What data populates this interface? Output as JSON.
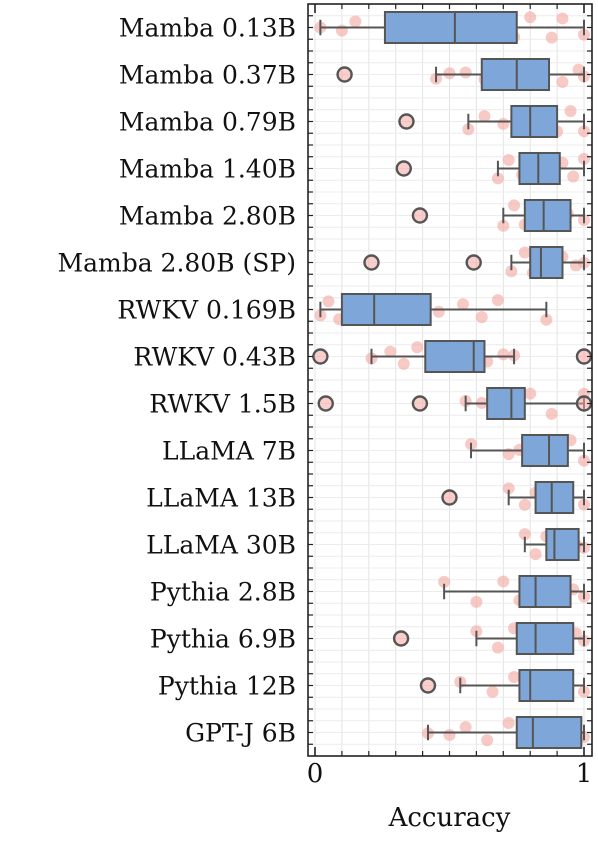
{
  "chart_data": {
    "type": "box",
    "xlabel": "Accuracy",
    "xlim": [
      0,
      1
    ],
    "x_ticks": [
      "0",
      "1"
    ],
    "grid": true,
    "colors": {
      "box": "#7ea6d8",
      "box_edge": "#555555",
      "point": "#f4a6a0",
      "outlier_edge": "#555555"
    },
    "series": [
      {
        "label": "Mamba 0.13B",
        "whisker_low": 0.02,
        "q1": 0.26,
        "median": 0.52,
        "q3": 0.75,
        "whisker_high": 1.0,
        "outliers": [],
        "points": [
          0.02,
          0.1,
          0.15,
          0.28,
          0.33,
          0.36,
          0.42,
          0.45,
          0.48,
          0.52,
          0.55,
          0.6,
          0.66,
          0.7,
          0.74,
          0.8,
          0.88,
          0.92,
          1.0
        ]
      },
      {
        "label": "Mamba 0.37B",
        "whisker_low": 0.45,
        "q1": 0.62,
        "median": 0.75,
        "q3": 0.87,
        "whisker_high": 1.0,
        "outliers": [
          0.11
        ],
        "points": [
          0.45,
          0.5,
          0.56,
          0.63,
          0.68,
          0.72,
          0.76,
          0.8,
          0.85,
          0.92,
          0.98,
          1.0
        ]
      },
      {
        "label": "Mamba 0.79B",
        "whisker_low": 0.57,
        "q1": 0.73,
        "median": 0.8,
        "q3": 0.9,
        "whisker_high": 1.0,
        "outliers": [
          0.34
        ],
        "points": [
          0.57,
          0.63,
          0.7,
          0.75,
          0.78,
          0.82,
          0.86,
          0.9,
          0.95,
          1.0
        ]
      },
      {
        "label": "Mamba 1.40B",
        "whisker_low": 0.68,
        "q1": 0.76,
        "median": 0.83,
        "q3": 0.91,
        "whisker_high": 1.0,
        "outliers": [
          0.33
        ],
        "points": [
          0.68,
          0.72,
          0.77,
          0.8,
          0.84,
          0.88,
          0.92,
          0.96,
          1.0
        ]
      },
      {
        "label": "Mamba 2.80B",
        "whisker_low": 0.7,
        "q1": 0.78,
        "median": 0.85,
        "q3": 0.95,
        "whisker_high": 1.0,
        "outliers": [
          0.39
        ],
        "points": [
          0.7,
          0.74,
          0.78,
          0.82,
          0.86,
          0.9,
          0.94,
          1.0
        ]
      },
      {
        "label": "Mamba 2.80B (SP)",
        "whisker_low": 0.73,
        "q1": 0.8,
        "median": 0.84,
        "q3": 0.92,
        "whisker_high": 1.0,
        "outliers": [
          0.21,
          0.59
        ],
        "points": [
          0.73,
          0.78,
          0.81,
          0.84,
          0.88,
          0.92,
          0.97,
          1.0
        ]
      },
      {
        "label": "RWKV 0.169B",
        "whisker_low": 0.02,
        "q1": 0.1,
        "median": 0.22,
        "q3": 0.43,
        "whisker_high": 0.86,
        "outliers": [],
        "points": [
          0.02,
          0.05,
          0.09,
          0.14,
          0.19,
          0.22,
          0.27,
          0.33,
          0.4,
          0.46,
          0.55,
          0.62,
          0.68,
          0.86
        ]
      },
      {
        "label": "RWKV 0.43B",
        "whisker_low": 0.21,
        "q1": 0.41,
        "median": 0.59,
        "q3": 0.63,
        "whisker_high": 0.74,
        "outliers": [
          0.02,
          1.0
        ],
        "points": [
          0.21,
          0.28,
          0.33,
          0.38,
          0.45,
          0.52,
          0.57,
          0.6,
          0.64,
          0.7,
          0.74
        ]
      },
      {
        "label": "RWKV 1.5B",
        "whisker_low": 0.56,
        "q1": 0.64,
        "median": 0.73,
        "q3": 0.78,
        "whisker_high": 1.0,
        "outliers": [
          0.04,
          0.39,
          1.0
        ],
        "points": [
          0.56,
          0.62,
          0.66,
          0.72,
          0.76,
          0.8,
          0.88,
          1.0
        ]
      },
      {
        "label": "LLaMA 7B",
        "whisker_low": 0.58,
        "q1": 0.77,
        "median": 0.87,
        "q3": 0.94,
        "whisker_high": 1.0,
        "outliers": [],
        "points": [
          0.58,
          0.72,
          0.76,
          0.8,
          0.84,
          0.88,
          0.91,
          0.95,
          1.0
        ]
      },
      {
        "label": "LLaMA 13B",
        "whisker_low": 0.72,
        "q1": 0.82,
        "median": 0.88,
        "q3": 0.96,
        "whisker_high": 1.0,
        "outliers": [
          0.5
        ],
        "points": [
          0.72,
          0.78,
          0.82,
          0.86,
          0.9,
          0.94,
          1.0
        ]
      },
      {
        "label": "LLaMA 30B",
        "whisker_low": 0.78,
        "q1": 0.86,
        "median": 0.89,
        "q3": 0.98,
        "whisker_high": 1.0,
        "outliers": [],
        "points": [
          0.78,
          0.82,
          0.86,
          0.9,
          0.93,
          0.97,
          1.0
        ]
      },
      {
        "label": "Pythia 2.8B",
        "whisker_low": 0.48,
        "q1": 0.76,
        "median": 0.82,
        "q3": 0.95,
        "whisker_high": 1.0,
        "outliers": [],
        "points": [
          0.48,
          0.6,
          0.7,
          0.76,
          0.8,
          0.85,
          0.9,
          0.96,
          1.0
        ]
      },
      {
        "label": "Pythia 6.9B",
        "whisker_low": 0.6,
        "q1": 0.75,
        "median": 0.82,
        "q3": 0.96,
        "whisker_high": 1.0,
        "outliers": [
          0.32
        ],
        "points": [
          0.6,
          0.68,
          0.74,
          0.8,
          0.86,
          0.92,
          0.97,
          1.0
        ]
      },
      {
        "label": "Pythia 12B",
        "whisker_low": 0.54,
        "q1": 0.76,
        "median": 0.8,
        "q3": 0.96,
        "whisker_high": 1.0,
        "outliers": [
          0.42
        ],
        "points": [
          0.54,
          0.66,
          0.74,
          0.78,
          0.82,
          0.88,
          0.94,
          1.0
        ]
      },
      {
        "label": "GPT-J 6B",
        "whisker_low": 0.42,
        "q1": 0.75,
        "median": 0.81,
        "q3": 0.99,
        "whisker_high": 1.0,
        "outliers": [],
        "points": [
          0.42,
          0.5,
          0.56,
          0.64,
          0.72,
          0.78,
          0.82,
          0.88,
          0.95,
          1.0
        ]
      }
    ]
  }
}
